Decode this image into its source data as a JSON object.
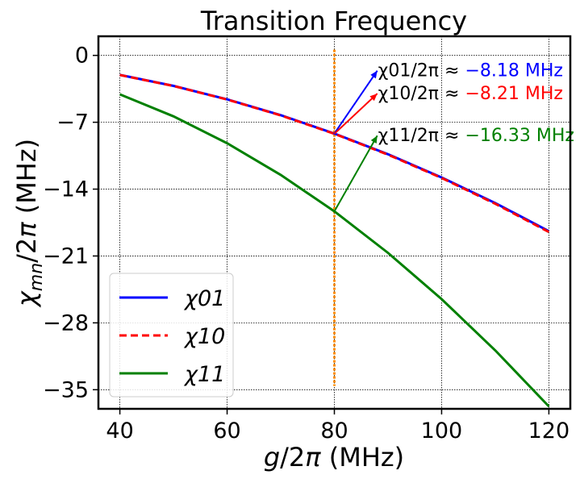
{
  "chart_data": {
    "type": "line",
    "title": "Transition Frequency",
    "xlabel": "g/2π (MHz)",
    "ylabel": "χmn/2π (MHz)",
    "xlim": [
      36,
      124
    ],
    "ylim": [
      -37,
      2
    ],
    "xticks": [
      40,
      60,
      80,
      100,
      120
    ],
    "yticks": [
      0,
      -7,
      -14,
      -21,
      -28,
      -35
    ],
    "grid": true,
    "legend_position": "bottom-left",
    "x": [
      40,
      50,
      60,
      70,
      80,
      90,
      100,
      110,
      120
    ],
    "series": [
      {
        "name": "χ01",
        "color": "#0000ff",
        "dash": "solid",
        "values": [
          -2.04,
          -3.19,
          -4.6,
          -6.26,
          -8.18,
          -10.35,
          -12.78,
          -15.46,
          -18.4
        ]
      },
      {
        "name": "χ10",
        "color": "#ff0000",
        "dash": "dashed",
        "values": [
          -2.05,
          -3.2,
          -4.62,
          -6.28,
          -8.21,
          -10.39,
          -12.83,
          -15.53,
          -18.49
        ]
      },
      {
        "name": "χ11",
        "color": "#008000",
        "dash": "solid",
        "values": [
          -4.08,
          -6.38,
          -9.19,
          -12.51,
          -16.33,
          -20.67,
          -25.52,
          -30.88,
          -36.75
        ]
      }
    ],
    "vline": {
      "x": 80,
      "color": "#ff8c00"
    },
    "annotations": [
      {
        "label": "χ01/2π ≈ ",
        "value": "−8.18 MHz",
        "color": "#0000ff",
        "from_x": 80,
        "from_y": -8.18,
        "to_x": 88,
        "to_y": -1.6
      },
      {
        "label": "χ10/2π ≈ ",
        "value": "−8.21 MHz",
        "color": "#ff0000",
        "from_x": 80,
        "from_y": -8.21,
        "to_x": 88,
        "to_y": -4.0
      },
      {
        "label": "χ11/2π ≈ ",
        "value": "−16.33 MHz",
        "color": "#008000",
        "from_x": 80,
        "from_y": -16.33,
        "to_x": 88,
        "to_y": -8.4
      }
    ]
  }
}
